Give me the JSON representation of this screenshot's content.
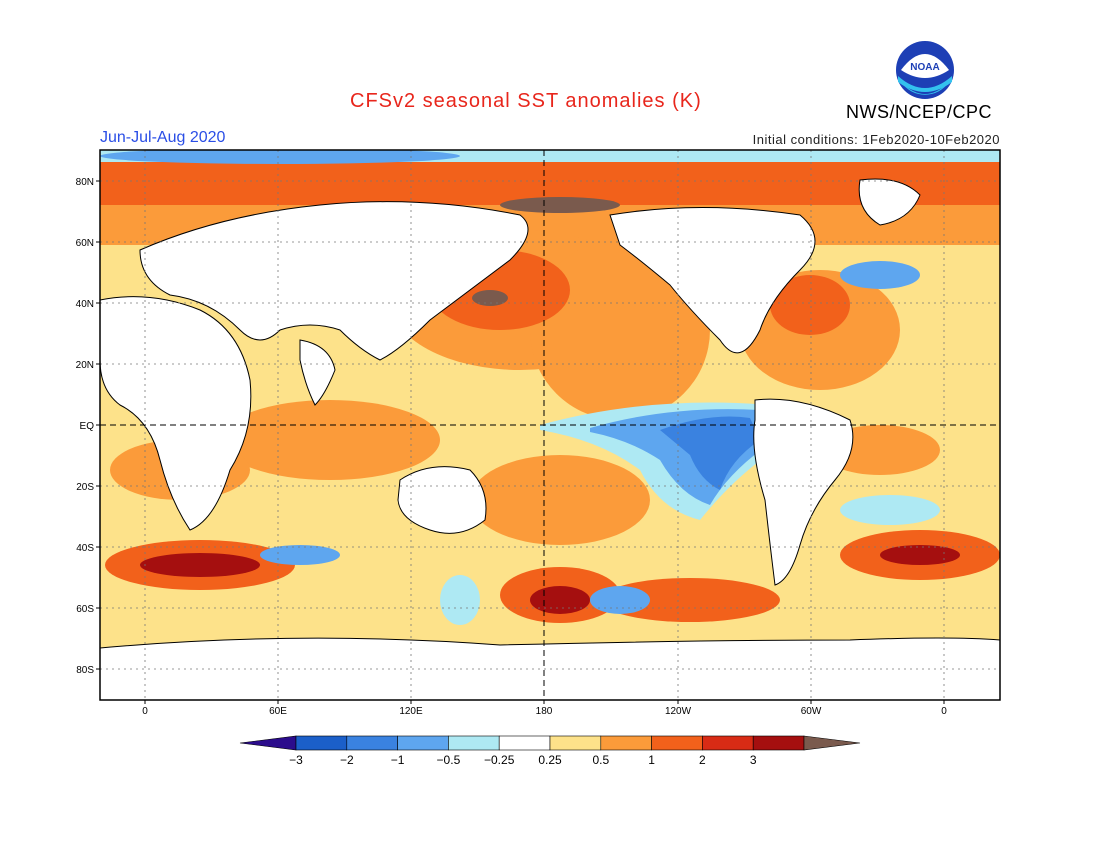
{
  "header": {
    "title": "CFSv2 seasonal SST anomalies (K)",
    "period": "Jun-Jul-Aug 2020",
    "initial_conditions": "Initial conditions: 1Feb2020-10Feb2020",
    "agency": "NWS/NCEP/CPC",
    "logo_text": "NOAA"
  },
  "map": {
    "lat_labels": [
      "80N",
      "60N",
      "40N",
      "20N",
      "EQ",
      "20S",
      "40S",
      "60S",
      "80S"
    ],
    "lon_labels": [
      "0",
      "60E",
      "120E",
      "180",
      "120W",
      "60W",
      "0"
    ],
    "land_color": "#ffffff",
    "grid": "dotted"
  },
  "colorbar": {
    "ticks": [
      "-3",
      "-2",
      "-1",
      "-0.5",
      "-0.25",
      "0.25",
      "0.5",
      "1",
      "2",
      "3"
    ],
    "colors": [
      "#2b0c8c",
      "#1b5fc9",
      "#3a82e0",
      "#5ea6ef",
      "#aee9f3",
      "#ffffff",
      "#fde28a",
      "#fb9b3a",
      "#f2611b",
      "#d82b15",
      "#a50f0f",
      "#7a5a4d"
    ]
  }
}
